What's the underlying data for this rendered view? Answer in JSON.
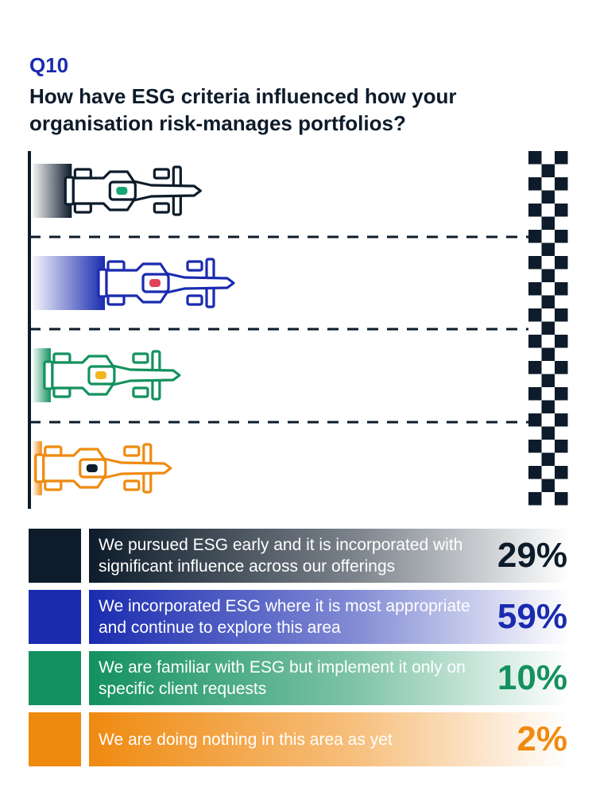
{
  "question": {
    "number": "Q10",
    "title": "How have ESG criteria influenced how your organisation risk-manages portfolios?"
  },
  "chart_data": {
    "type": "bar",
    "title": "How have ESG criteria influenced how your organisation risk-manages portfolios?",
    "categories": [
      "We pursued ESG early and it is incorporated with significant influence across our offerings",
      "We incorporated ESG where it is most appropriate and continue to explore this area",
      "We are familiar with ESG but implement it only on specific client requests",
      "We are doing nothing in this area as yet"
    ],
    "values": [
      29,
      59,
      10,
      2
    ],
    "unit": "%"
  },
  "legend": [
    {
      "label": "We pursued ESG early and it is incorporated with significant influence across our offerings",
      "pct": "29%",
      "color": "#0d1b2a",
      "driver": "#17a672"
    },
    {
      "label": "We incorporated ESG where it is most appropriate and continue to explore this area",
      "pct": "59%",
      "color": "#1a2bb0",
      "driver": "#e0435a"
    },
    {
      "label": "We are familiar with ESG but implement it only on specific client requests",
      "pct": "10%",
      "color": "#13915f",
      "driver": "#f2b51d"
    },
    {
      "label": "We are doing nothing in this area as yet",
      "pct": "2%",
      "color": "#ef8a10",
      "driver": "#0d1b2a"
    }
  ]
}
